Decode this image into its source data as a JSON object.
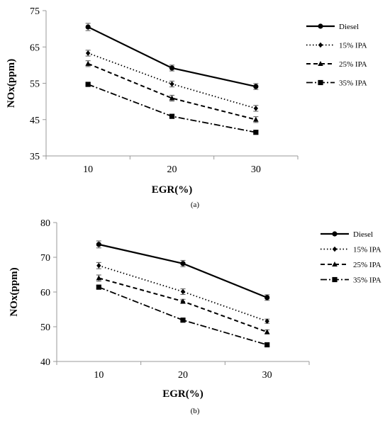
{
  "chart_data": [
    {
      "type": "line",
      "panel_label": "(a)",
      "categories": [
        10,
        20,
        30
      ],
      "xlabel": "EGR(%)",
      "ylabel": "NOx(ppm)",
      "ylim": [
        35,
        75
      ],
      "yticks": [
        35,
        45,
        55,
        65,
        75
      ],
      "grid": false,
      "legend_position": "right",
      "series": [
        {
          "name": "Diesel",
          "values": [
            70.5,
            59.2,
            54.1
          ],
          "errors": [
            1.0,
            0.8,
            0.8
          ],
          "marker": "circle",
          "dash": "solid"
        },
        {
          "name": "15% IPA",
          "values": [
            63.3,
            54.8,
            48.1
          ],
          "errors": [
            0.8,
            0.8,
            0.8
          ],
          "marker": "diamond",
          "dash": "dotted"
        },
        {
          "name": "25% IPA",
          "values": [
            60.4,
            50.9,
            45.0
          ],
          "errors": [
            0.8,
            0.8,
            0.8
          ],
          "marker": "triangle",
          "dash": "dashed"
        },
        {
          "name": "35% IPA",
          "values": [
            54.7,
            45.9,
            41.5
          ],
          "errors": [
            0.5,
            0.5,
            0.5
          ],
          "marker": "square",
          "dash": "dashdot"
        }
      ]
    },
    {
      "type": "line",
      "panel_label": "(b)",
      "categories": [
        10,
        20,
        30
      ],
      "xlabel": "EGR(%)",
      "ylabel": "NOx(ppm)",
      "ylim": [
        40,
        80
      ],
      "yticks": [
        40,
        50,
        60,
        70,
        80
      ],
      "grid": false,
      "legend_position": "right",
      "series": [
        {
          "name": "Diesel",
          "values": [
            73.7,
            68.2,
            58.4
          ],
          "errors": [
            1.0,
            0.9,
            0.8
          ],
          "marker": "circle",
          "dash": "solid"
        },
        {
          "name": "15% IPA",
          "values": [
            67.6,
            60.1,
            51.6
          ],
          "errors": [
            0.9,
            0.8,
            0.6
          ],
          "marker": "diamond",
          "dash": "dotted"
        },
        {
          "name": "25% IPA",
          "values": [
            64.0,
            57.3,
            48.5
          ],
          "errors": [
            0.9,
            0.6,
            0.6
          ],
          "marker": "triangle",
          "dash": "dashed"
        },
        {
          "name": "35% IPA",
          "values": [
            61.4,
            51.9,
            44.8
          ],
          "errors": [
            0.5,
            0.5,
            0.5
          ],
          "marker": "square",
          "dash": "dashdot"
        }
      ]
    }
  ]
}
